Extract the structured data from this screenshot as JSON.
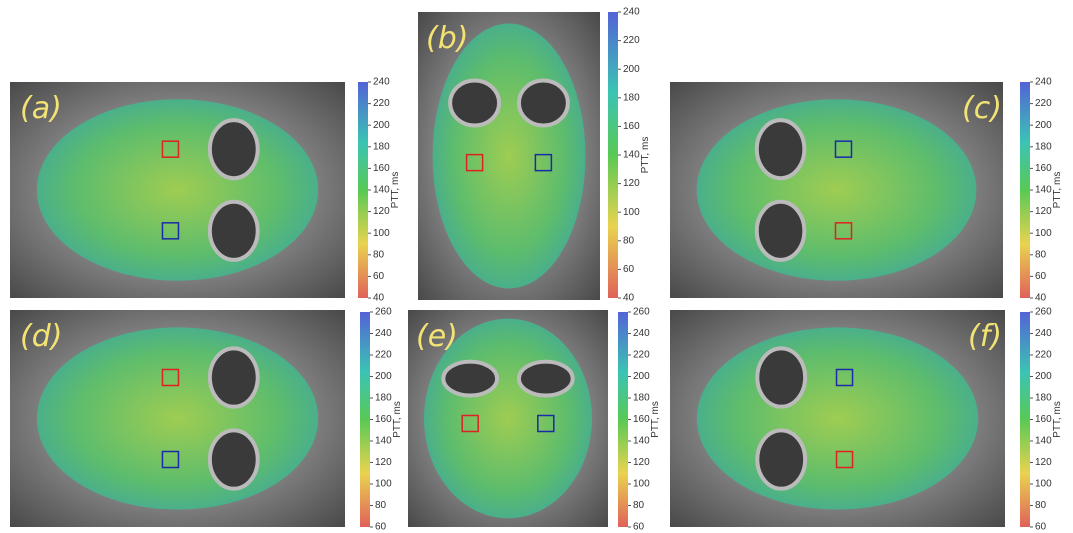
{
  "panels": [
    {
      "label": "(a)",
      "colorbar": {
        "label": "PTT, ms",
        "range": [
          40,
          240
        ],
        "ticks": [
          40,
          60,
          80,
          100,
          120,
          140,
          160,
          180,
          200,
          220,
          240
        ]
      }
    },
    {
      "label": "(b)",
      "colorbar": {
        "label": "PTT, ms",
        "range": [
          40,
          240
        ],
        "ticks": [
          40,
          60,
          80,
          100,
          120,
          140,
          160,
          180,
          200,
          220,
          240
        ]
      }
    },
    {
      "label": "(c)",
      "colorbar": {
        "label": "PTT, ms",
        "range": [
          40,
          240
        ],
        "ticks": [
          40,
          60,
          80,
          100,
          120,
          140,
          160,
          180,
          200,
          220,
          240
        ]
      }
    },
    {
      "label": "(d)",
      "colorbar": {
        "label": "PTT, ms",
        "range": [
          60,
          260
        ],
        "ticks": [
          60,
          80,
          100,
          120,
          140,
          160,
          180,
          200,
          220,
          240,
          260
        ]
      }
    },
    {
      "label": "(e)",
      "colorbar": {
        "label": "PTT, ms",
        "range": [
          60,
          260
        ],
        "ticks": [
          60,
          80,
          100,
          120,
          140,
          160,
          180,
          200,
          220,
          240,
          260
        ]
      }
    },
    {
      "label": "(f)",
      "colorbar": {
        "label": "PTT, ms",
        "range": [
          60,
          260
        ],
        "ticks": [
          60,
          80,
          100,
          120,
          140,
          160,
          180,
          200,
          220,
          240,
          260
        ]
      }
    }
  ]
}
